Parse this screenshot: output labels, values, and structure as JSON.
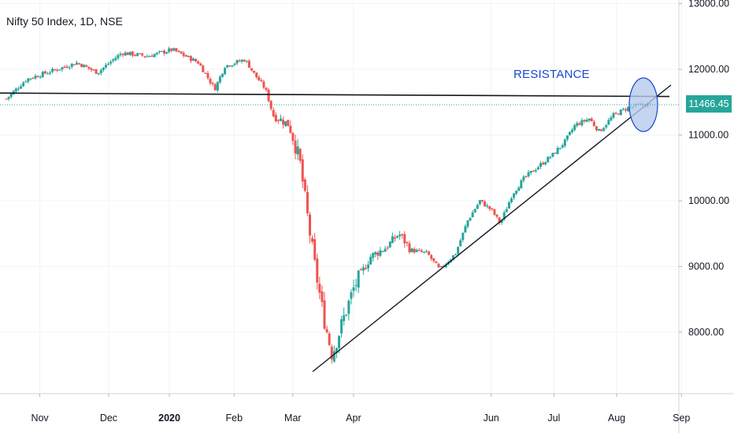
{
  "header": {
    "title": "Nifty 50 Index, 1D, NSE"
  },
  "annotation": {
    "label": "RESISTANCE"
  },
  "last_price": {
    "label": "11466.45",
    "color": "#26a69a"
  },
  "colors": {
    "up": "#26a69a",
    "down": "#ef5350",
    "line": "#131722",
    "circle_fill": "#b5c9ee",
    "circle_stroke": "#1848cc"
  },
  "chart_data": {
    "type": "candlestick",
    "title": "Nifty 50 Index, 1D, NSE",
    "y_axis_ticks": [
      "13000.00",
      "12000.00",
      "11000.00",
      "10000.00",
      "9000.00",
      "8000.00"
    ],
    "y_axis_values": [
      13000,
      12000,
      11000,
      10000,
      9000,
      8000
    ],
    "ylim": [
      7000,
      13000
    ],
    "x_axis_ticks": [
      "Nov",
      "Dec",
      "2020",
      "Feb",
      "Mar",
      "Apr",
      "Jun",
      "Jul",
      "Aug",
      "Sep"
    ],
    "x_axis_tick_days": [
      8,
      42,
      72,
      104,
      133,
      163,
      231,
      262,
      293,
      325
    ],
    "last_price": 11466.45,
    "grid": true,
    "series": [
      {
        "ohlc_anchors": [
          [
            0,
            11550
          ],
          [
            10,
            11850
          ],
          [
            20,
            11950
          ],
          [
            35,
            12100
          ],
          [
            45,
            11950
          ],
          [
            57,
            12250
          ],
          [
            70,
            12200
          ],
          [
            82,
            12300
          ],
          [
            95,
            12100
          ],
          [
            103,
            11700
          ],
          [
            108,
            12050
          ],
          [
            118,
            12150
          ],
          [
            122,
            11950
          ],
          [
            128,
            11700
          ],
          [
            132,
            11300
          ],
          [
            140,
            11150
          ],
          [
            145,
            10600
          ],
          [
            150,
            9500
          ],
          [
            153,
            8900
          ],
          [
            157,
            8200
          ],
          [
            161,
            7650
          ],
          [
            166,
            8150
          ],
          [
            172,
            8700
          ],
          [
            180,
            9150
          ],
          [
            188,
            9300
          ],
          [
            194,
            9500
          ],
          [
            200,
            9250
          ],
          [
            208,
            9200
          ],
          [
            214,
            8950
          ],
          [
            222,
            9200
          ],
          [
            228,
            9700
          ],
          [
            234,
            10000
          ],
          [
            240,
            9850
          ],
          [
            244,
            9650
          ],
          [
            250,
            10100
          ],
          [
            256,
            10350
          ],
          [
            262,
            10500
          ],
          [
            270,
            10700
          ],
          [
            276,
            10900
          ],
          [
            281,
            11150
          ],
          [
            288,
            11250
          ],
          [
            293,
            11050
          ],
          [
            300,
            11300
          ],
          [
            306,
            11400
          ],
          [
            312,
            11450
          ],
          [
            318,
            11466
          ]
        ]
      }
    ],
    "annotations": [
      {
        "type": "resistance_line",
        "label": "RESISTANCE",
        "from": [
          0,
          11650
        ],
        "to": [
          318,
          11550
        ]
      },
      {
        "type": "trendline",
        "from": [
          161,
          7350
        ],
        "to": [
          328,
          11750
        ]
      },
      {
        "type": "circle",
        "center": [
          314,
          11480
        ]
      },
      {
        "type": "hline_dotted",
        "value": 11466.45
      }
    ]
  }
}
